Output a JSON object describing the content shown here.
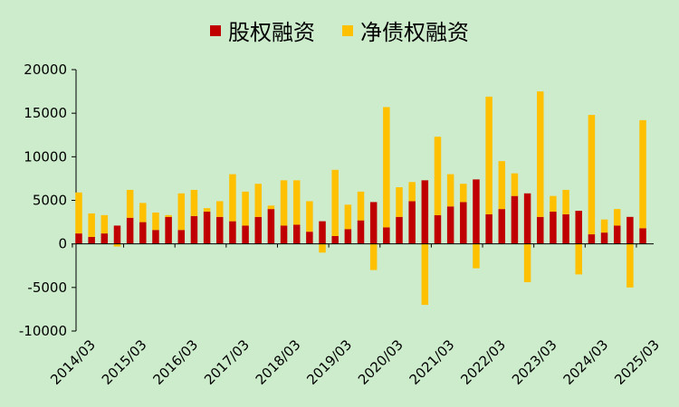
{
  "chart_data": {
    "type": "bar",
    "stacked": true,
    "legend_position": "top",
    "grid": false,
    "ylim": [
      -10000,
      20000
    ],
    "y_ticks": [
      20000,
      15000,
      10000,
      5000,
      0,
      -5000,
      -10000
    ],
    "x_tick_labels": [
      "2014/03",
      "2015/03",
      "2016/03",
      "2017/03",
      "2018/03",
      "2019/03",
      "2020/03",
      "2021/03",
      "2022/03",
      "2023/03",
      "2024/03",
      "2025/03"
    ],
    "series": [
      {
        "name": "股权融资",
        "color": "#c00000",
        "values": [
          1200,
          800,
          1200,
          2100,
          3000,
          2500,
          1600,
          3100,
          1600,
          3200,
          3700,
          3100,
          2600,
          2100,
          3100,
          4000,
          2100,
          2200,
          1400,
          2600,
          900,
          1700,
          2700,
          4800,
          1900,
          3100,
          4900,
          7300,
          3300,
          4300,
          4800,
          7400,
          3400,
          4000,
          5500,
          5800,
          3100,
          3700,
          3400,
          3800,
          1100,
          1300,
          2100,
          3100,
          1800
        ]
      },
      {
        "name": "净债权融资",
        "color": "#ffc000",
        "values": [
          4700,
          2700,
          2100,
          -300,
          3200,
          2200,
          2000,
          200,
          4200,
          3000,
          400,
          1800,
          5400,
          3900,
          3800,
          400,
          5200,
          5100,
          3500,
          -1000,
          7600,
          2800,
          3300,
          -3000,
          13800,
          3400,
          2200,
          -7000,
          9000,
          3700,
          2100,
          -2800,
          13500,
          5500,
          2600,
          -4400,
          14400,
          1800,
          2800,
          -3500,
          13700,
          1500,
          1900,
          -5000,
          12400
        ]
      }
    ]
  }
}
